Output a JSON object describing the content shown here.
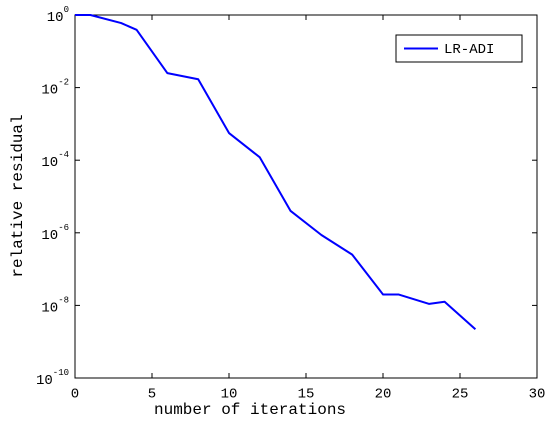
{
  "chart_data": {
    "type": "line",
    "xlabel": "number of iterations",
    "ylabel": "relative residual",
    "x": [
      0,
      1,
      3,
      4,
      6,
      8,
      10,
      12,
      14,
      16,
      18,
      20,
      21,
      23,
      24,
      26
    ],
    "series": [
      {
        "name": "LR-ADI",
        "color": "#0000ff",
        "values": [
          1,
          1,
          0.6,
          0.39,
          0.025,
          0.017,
          0.00056,
          0.00012,
          4e-06,
          8.7e-07,
          2.5e-07,
          2e-08,
          2e-08,
          1.1e-08,
          1.26e-08,
          2.2e-09
        ]
      }
    ],
    "xlim": [
      0,
      30
    ],
    "xticks": [
      0,
      5,
      10,
      15,
      20,
      25,
      30
    ],
    "ylim": [
      1e-10,
      1
    ],
    "yscale": "log",
    "yticks": [
      {
        "value": 1e-10,
        "label": "10^-10"
      },
      {
        "value": 1e-08,
        "label": "10^-8"
      },
      {
        "value": 1e-06,
        "label": "10^-6"
      },
      {
        "value": 0.0001,
        "label": "10^-4"
      },
      {
        "value": 0.01,
        "label": "10^-2"
      },
      {
        "value": 1,
        "label": "10^0"
      }
    ],
    "grid": false,
    "legend": "northeast"
  }
}
